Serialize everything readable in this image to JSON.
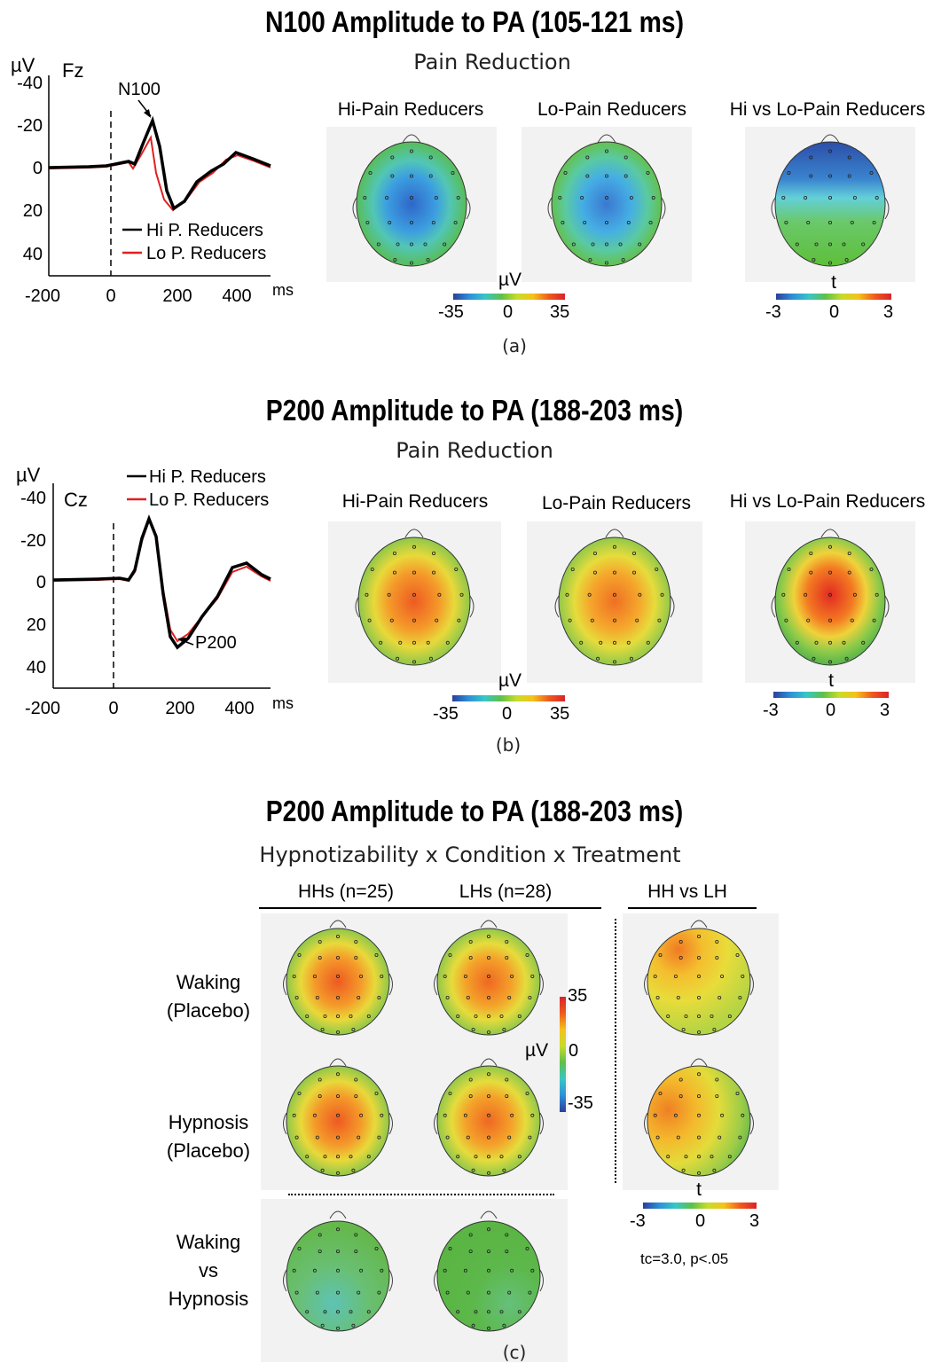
{
  "panel_a": {
    "title": "N100 Amplitude to PA (105-121 ms)",
    "subtitle": "Pain Reduction",
    "label": "(a)",
    "erp": {
      "unit": "µV",
      "electrode": "Fz",
      "peak_label": "N100",
      "x_unit": "ms",
      "legend": [
        "Hi P. Reducers",
        "Lo P. Reducers"
      ],
      "y_ticks": [
        "-40",
        "-20",
        "0",
        "20",
        "40"
      ],
      "x_ticks": [
        "-200",
        "0",
        "200",
        "400"
      ]
    },
    "maps": [
      "Hi-Pain Reducers",
      "Lo-Pain Reducers",
      "Hi vs Lo-Pain Reducers"
    ],
    "colorbar_uv": {
      "label": "µV",
      "min": "-35",
      "mid": "0",
      "max": "35"
    },
    "colorbar_t": {
      "label": "t",
      "min": "-3",
      "mid": "0",
      "max": "3"
    }
  },
  "panel_b": {
    "title": "P200 Amplitude to PA (188-203 ms)",
    "subtitle": "Pain Reduction",
    "label": "(b)",
    "erp": {
      "unit": "µV",
      "electrode": "Cz",
      "peak_label": "P200",
      "x_unit": "ms",
      "legend": [
        "Hi P. Reducers",
        "Lo P. Reducers"
      ],
      "y_ticks": [
        "-40",
        "-20",
        "0",
        "20",
        "40"
      ],
      "x_ticks": [
        "-200",
        "0",
        "200",
        "400"
      ]
    },
    "maps": [
      "Hi-Pain Reducers",
      "Lo-Pain Reducers",
      "Hi vs Lo-Pain Reducers"
    ],
    "colorbar_uv": {
      "label": "µV",
      "min": "-35",
      "mid": "0",
      "max": "35"
    },
    "colorbar_t": {
      "label": "t",
      "min": "-3",
      "mid": "0",
      "max": "3"
    }
  },
  "panel_c": {
    "title": "P200 Amplitude to PA (188-203 ms)",
    "subtitle": "Hypnotizability x Condition x Treatment",
    "label": "(c)",
    "columns": [
      "HHs (n=25)",
      "LHs (n=28)",
      "HH vs LH"
    ],
    "rows": [
      {
        "line1": "Waking",
        "line2": "(Placebo)"
      },
      {
        "line1": "Hypnosis",
        "line2": "(Placebo)"
      },
      {
        "line1": "Waking",
        "line2": "vs",
        "line3": "Hypnosis"
      }
    ],
    "colorbar_uv": {
      "label": "µV",
      "max": "35",
      "mid": "0",
      "min": "-35"
    },
    "colorbar_t": {
      "label": "t",
      "min": "-3",
      "mid": "0",
      "max": "3"
    },
    "stat_note": "tc=3.0, p<.05"
  },
  "colors": {
    "hi_reducers": "#000000",
    "lo_reducers": "#e02020"
  }
}
